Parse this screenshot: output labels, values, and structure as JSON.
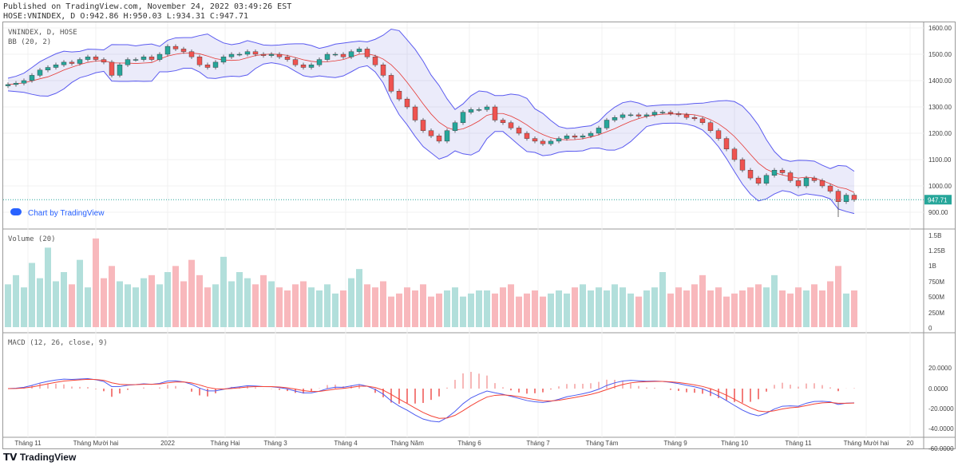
{
  "header": {
    "published": "Published on TradingView.com, November 24, 2022 03:49:26 EST",
    "ohlc": "HOSE:VNINDEX, D O:942.86 H:950.03 L:934.31 C:947.71"
  },
  "legend": {
    "symbol": "VNINDEX, D, HOSE",
    "bb": "BB (20, 2)",
    "volume": "Volume (20)",
    "macd": "MACD (12, 26, close, 9)"
  },
  "chart_by": "Chart by TradingView",
  "logo": "TradingView",
  "last_price": "947.71",
  "colors": {
    "up": "#26a69a",
    "down": "#ef5350",
    "band": "#5b5bf0",
    "ma": "#e53935",
    "macd": "#4c5bf0",
    "signal": "#f44336"
  },
  "price_axis": [
    "1600.00",
    "1500.00",
    "1400.00",
    "1300.00",
    "1200.00",
    "1100.00",
    "1000.00",
    "900.00"
  ],
  "volume_axis": [
    "1.5B",
    "1.25B",
    "1B",
    "750M",
    "500M",
    "250M",
    "0"
  ],
  "macd_axis": [
    "20.0000",
    "0.0000",
    "-20.0000",
    "-40.0000",
    "-60.0000"
  ],
  "time_axis": [
    "Tháng 11",
    "Tháng Mười hai",
    "2022",
    "Tháng Hai",
    "Tháng 3",
    "Tháng 4",
    "Tháng Năm",
    "Tháng 6",
    "Tháng 7",
    "Tháng Tám",
    "Tháng 9",
    "Tháng 10",
    "Tháng 11",
    "Tháng Mười hai",
    "20"
  ],
  "chart_data": {
    "type": "candlestick",
    "ylim": [
      870,
      1620
    ],
    "closes": [
      1385,
      1390,
      1400,
      1420,
      1440,
      1450,
      1460,
      1470,
      1465,
      1480,
      1490,
      1480,
      1470,
      1420,
      1460,
      1480,
      1480,
      1490,
      1480,
      1500,
      1530,
      1520,
      1510,
      1490,
      1460,
      1450,
      1470,
      1490,
      1500,
      1500,
      1510,
      1500,
      1495,
      1500,
      1490,
      1480,
      1460,
      1450,
      1460,
      1480,
      1500,
      1500,
      1490,
      1510,
      1520,
      1490,
      1460,
      1420,
      1360,
      1330,
      1300,
      1250,
      1210,
      1190,
      1170,
      1210,
      1240,
      1280,
      1290,
      1290,
      1300,
      1250,
      1240,
      1220,
      1200,
      1180,
      1170,
      1160,
      1170,
      1180,
      1190,
      1185,
      1190,
      1200,
      1220,
      1250,
      1260,
      1270,
      1270,
      1265,
      1270,
      1280,
      1280,
      1275,
      1270,
      1260,
      1255,
      1240,
      1210,
      1180,
      1140,
      1100,
      1060,
      1030,
      1010,
      1040,
      1060,
      1050,
      1020,
      1000,
      1030,
      1020,
      1000,
      980,
      940,
      965,
      947.71
    ],
    "volumes": [
      700,
      850,
      650,
      1050,
      800,
      1300,
      750,
      900,
      700,
      1100,
      650,
      1450,
      800,
      1000,
      750,
      700,
      650,
      800,
      850,
      700,
      900,
      1000,
      750,
      1100,
      850,
      650,
      700,
      1150,
      750,
      900,
      800,
      700,
      850,
      750,
      650,
      600,
      700,
      750,
      650,
      600,
      700,
      550,
      600,
      800,
      950,
      700,
      650,
      750,
      500,
      550,
      650,
      600,
      700,
      500,
      550,
      600,
      650,
      500,
      550,
      600,
      600,
      550,
      650,
      700,
      500,
      550,
      600,
      500,
      550,
      600,
      550,
      650,
      700,
      600,
      650,
      600,
      700,
      650,
      550,
      500,
      600,
      650,
      900,
      550,
      650,
      600,
      700,
      850,
      600,
      650,
      500,
      550,
      600,
      650,
      700,
      650,
      850,
      600,
      550,
      650,
      600,
      700,
      600,
      750,
      1000,
      550,
      600
    ]
  }
}
